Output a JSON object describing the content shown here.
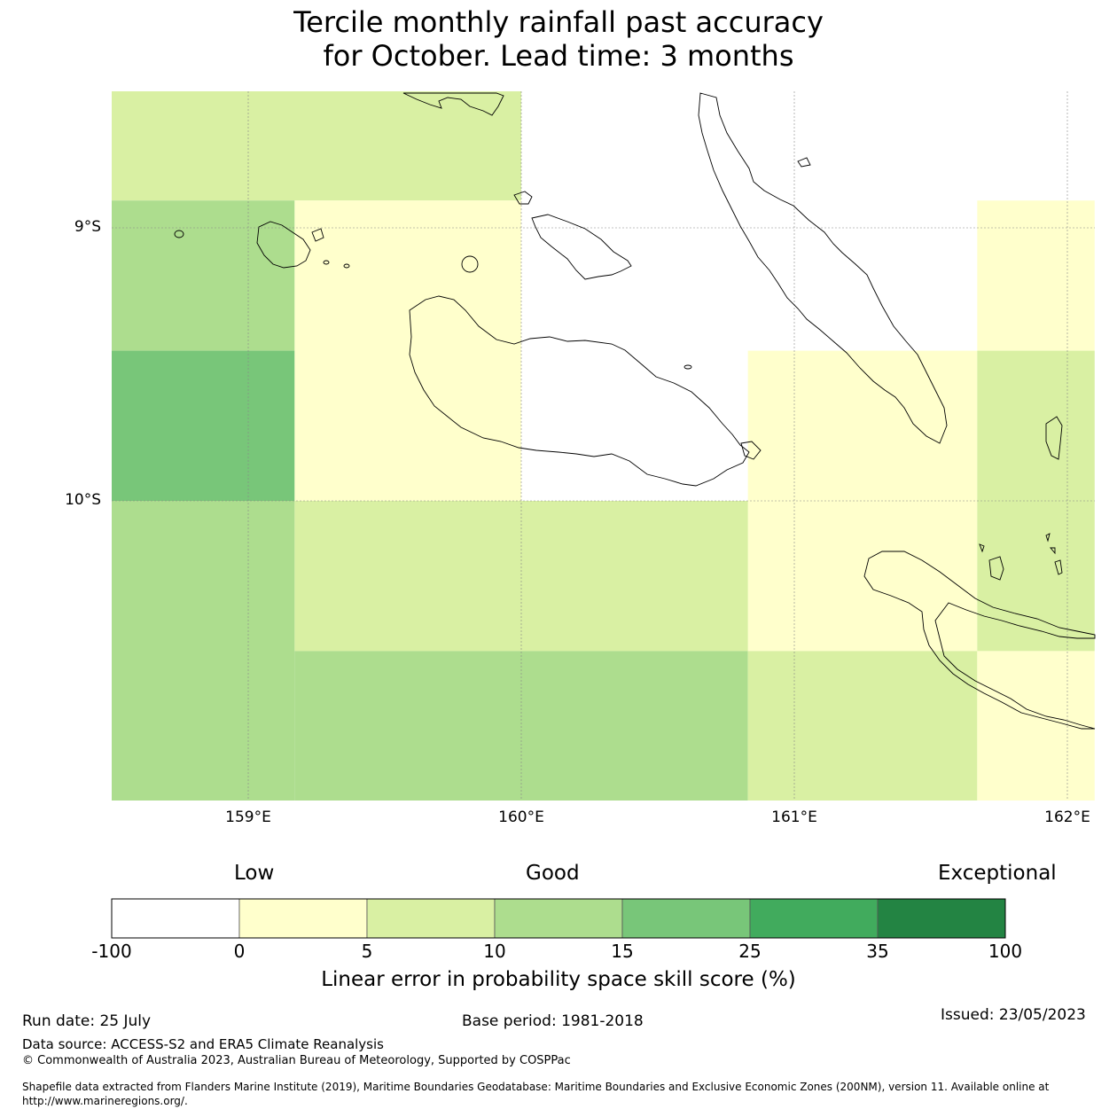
{
  "title": {
    "line1": "Tercile monthly rainfall past accuracy",
    "line2": "for October. Lead time: 3 months"
  },
  "map": {
    "lat_labels": [
      "9°S",
      "10°S"
    ],
    "lon_labels": [
      "159°E",
      "160°E",
      "161°E",
      "162°E"
    ],
    "skill_grid": [
      {
        "lon_range": [
          158.5,
          160.0
        ],
        "lat_range": [
          -8.9,
          -8.5
        ],
        "category": "5-10"
      },
      {
        "lon_range": [
          158.5,
          159.17
        ],
        "lat_range": [
          -9.45,
          -8.9
        ],
        "category": "10-15"
      },
      {
        "lon_range": [
          158.5,
          159.17
        ],
        "lat_range": [
          -10.0,
          -9.45
        ],
        "category": "15-25"
      },
      {
        "lon_range": [
          159.17,
          160.0
        ],
        "lat_range": [
          -10.0,
          -8.9
        ],
        "category": "0-5"
      },
      {
        "lon_range": [
          160.0,
          160.83
        ],
        "lat_range": [
          -10.0,
          -8.5
        ],
        "category": "-100-0"
      },
      {
        "lon_range": [
          160.83,
          161.67
        ],
        "lat_range": [
          -9.45,
          -8.5
        ],
        "category": "-100-0"
      },
      {
        "lon_range": [
          161.67,
          162.1
        ],
        "lat_range": [
          -8.9,
          -8.5
        ],
        "category": "-100-0"
      },
      {
        "lon_range": [
          161.67,
          162.1
        ],
        "lat_range": [
          -9.45,
          -8.9
        ],
        "category": "0-5"
      },
      {
        "lon_range": [
          160.83,
          161.67
        ],
        "lat_range": [
          -10.55,
          -9.45
        ],
        "category": "0-5"
      },
      {
        "lon_range": [
          161.67,
          162.1
        ],
        "lat_range": [
          -10.55,
          -9.45
        ],
        "category": "5-10"
      },
      {
        "lon_range": [
          158.5,
          159.17
        ],
        "lat_range": [
          -11.1,
          -10.0
        ],
        "category": "10-15"
      },
      {
        "lon_range": [
          159.17,
          160.83
        ],
        "lat_range": [
          -10.55,
          -10.0
        ],
        "category": "5-10"
      },
      {
        "lon_range": [
          159.17,
          160.83
        ],
        "lat_range": [
          -11.1,
          -10.55
        ],
        "category": "10-15"
      },
      {
        "lon_range": [
          160.83,
          161.67
        ],
        "lat_range": [
          -11.1,
          -10.55
        ],
        "category": "5-10"
      },
      {
        "lon_range": [
          161.67,
          162.1
        ],
        "lat_range": [
          -11.1,
          -10.55
        ],
        "category": "0-5"
      }
    ]
  },
  "colorbar": {
    "headings": {
      "low": "Low",
      "good": "Good",
      "exceptional": "Exceptional"
    },
    "ticks": [
      "-100",
      "0",
      "5",
      "10",
      "15",
      "25",
      "35",
      "100"
    ],
    "colors": [
      "#ffffff",
      "#ffffcc",
      "#d9f0a3",
      "#addd8e",
      "#78c679",
      "#41ab5d",
      "#238443"
    ],
    "label": "Linear error in probability space skill score (%)"
  },
  "category_colors": {
    "-100-0": "#ffffff",
    "0-5": "#ffffcc",
    "5-10": "#d9f0a3",
    "10-15": "#addd8e",
    "15-25": "#78c679",
    "25-35": "#41ab5d",
    "35-100": "#238443"
  },
  "footer": {
    "run_date": "Run date: 25 July",
    "base_period": "Base period: 1981-2018",
    "issued": "Issued: 23/05/2023",
    "data_source": "Data source: ACCESS-S2 and ERA5 Climate Reanalysis",
    "copyright": "© Commonwealth of Australia 2023, Australian Bureau of Meteorology, Supported by COSPPac",
    "shapefile_line1": "Shapefile data extracted from Flanders Marine Institute (2019), Maritime Boundaries Geodatabase: Maritime Boundaries and Exclusive Economic Zones (200NM), version 11. Available online at",
    "shapefile_line2": "http://www.marineregions.org/."
  }
}
